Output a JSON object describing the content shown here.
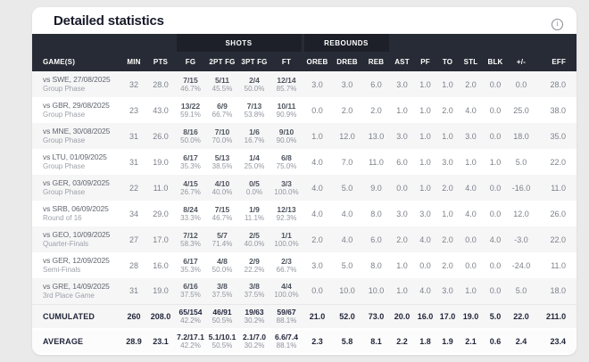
{
  "header": {
    "title": "Detailed statistics",
    "info_glyph": "i"
  },
  "colors": {
    "page_bg": "#eaeaea",
    "card_bg": "#ffffff",
    "title_color": "#171b2a",
    "header_bg": "#272b35",
    "group_bg": "#1d2029",
    "stripe": "#f6f6f7",
    "num_color": "#7b8089",
    "summary_color": "#22263a"
  },
  "table": {
    "group_headers": [
      {
        "label": "",
        "span": 3
      },
      {
        "label": "SHOTS",
        "span": 4
      },
      {
        "label": "REBOUNDS",
        "span": 3
      },
      {
        "label": "",
        "span": 7
      }
    ],
    "columns": [
      "GAME(S)",
      "MIN",
      "PTS",
      "FG",
      "2PT FG",
      "3PT FG",
      "FT",
      "OREB",
      "DREB",
      "REB",
      "AST",
      "PF",
      "TO",
      "STL",
      "BLK",
      "+/-",
      "EFF"
    ],
    "rows": [
      {
        "game": "vs SWE, 27/08/2025",
        "phase": "Group Phase",
        "min": "32",
        "pts": "28.0",
        "fg": "7/15",
        "fg_pct": "46.7%",
        "fg2": "5/11",
        "fg2_pct": "45.5%",
        "fg3": "2/4",
        "fg3_pct": "50.0%",
        "ft": "12/14",
        "ft_pct": "85.7%",
        "oreb": "3.0",
        "dreb": "3.0",
        "reb": "6.0",
        "ast": "3.0",
        "pf": "1.0",
        "to": "1.0",
        "stl": "2.0",
        "blk": "0.0",
        "plus_minus": "0.0",
        "eff": "28.0"
      },
      {
        "game": "vs GBR, 29/08/2025",
        "phase": "Group Phase",
        "min": "23",
        "pts": "43.0",
        "fg": "13/22",
        "fg_pct": "59.1%",
        "fg2": "6/9",
        "fg2_pct": "66.7%",
        "fg3": "7/13",
        "fg3_pct": "53.8%",
        "ft": "10/11",
        "ft_pct": "90.9%",
        "oreb": "0.0",
        "dreb": "2.0",
        "reb": "2.0",
        "ast": "1.0",
        "pf": "1.0",
        "to": "2.0",
        "stl": "4.0",
        "blk": "0.0",
        "plus_minus": "25.0",
        "eff": "38.0"
      },
      {
        "game": "vs MNE, 30/08/2025",
        "phase": "Group Phase",
        "min": "31",
        "pts": "26.0",
        "fg": "8/16",
        "fg_pct": "50.0%",
        "fg2": "7/10",
        "fg2_pct": "70.0%",
        "fg3": "1/6",
        "fg3_pct": "16.7%",
        "ft": "9/10",
        "ft_pct": "90.0%",
        "oreb": "1.0",
        "dreb": "12.0",
        "reb": "13.0",
        "ast": "3.0",
        "pf": "1.0",
        "to": "1.0",
        "stl": "3.0",
        "blk": "0.0",
        "plus_minus": "18.0",
        "eff": "35.0"
      },
      {
        "game": "vs LTU, 01/09/2025",
        "phase": "Group Phase",
        "min": "31",
        "pts": "19.0",
        "fg": "6/17",
        "fg_pct": "35.3%",
        "fg2": "5/13",
        "fg2_pct": "38.5%",
        "fg3": "1/4",
        "fg3_pct": "25.0%",
        "ft": "6/8",
        "ft_pct": "75.0%",
        "oreb": "4.0",
        "dreb": "7.0",
        "reb": "11.0",
        "ast": "6.0",
        "pf": "1.0",
        "to": "3.0",
        "stl": "1.0",
        "blk": "1.0",
        "plus_minus": "5.0",
        "eff": "22.0"
      },
      {
        "game": "vs GER, 03/09/2025",
        "phase": "Group Phase",
        "min": "22",
        "pts": "11.0",
        "fg": "4/15",
        "fg_pct": "26.7%",
        "fg2": "4/10",
        "fg2_pct": "40.0%",
        "fg3": "0/5",
        "fg3_pct": "0.0%",
        "ft": "3/3",
        "ft_pct": "100.0%",
        "oreb": "4.0",
        "dreb": "5.0",
        "reb": "9.0",
        "ast": "0.0",
        "pf": "1.0",
        "to": "2.0",
        "stl": "4.0",
        "blk": "0.0",
        "plus_minus": "-16.0",
        "eff": "11.0"
      },
      {
        "game": "vs SRB, 06/09/2025",
        "phase": "Round of 16",
        "min": "34",
        "pts": "29.0",
        "fg": "8/24",
        "fg_pct": "33.3%",
        "fg2": "7/15",
        "fg2_pct": "46.7%",
        "fg3": "1/9",
        "fg3_pct": "11.1%",
        "ft": "12/13",
        "ft_pct": "92.3%",
        "oreb": "4.0",
        "dreb": "4.0",
        "reb": "8.0",
        "ast": "3.0",
        "pf": "3.0",
        "to": "1.0",
        "stl": "4.0",
        "blk": "0.0",
        "plus_minus": "12.0",
        "eff": "26.0"
      },
      {
        "game": "vs GEO, 10/09/2025",
        "phase": "Quarter-Finals",
        "min": "27",
        "pts": "17.0",
        "fg": "7/12",
        "fg_pct": "58.3%",
        "fg2": "5/7",
        "fg2_pct": "71.4%",
        "fg3": "2/5",
        "fg3_pct": "40.0%",
        "ft": "1/1",
        "ft_pct": "100.0%",
        "oreb": "2.0",
        "dreb": "4.0",
        "reb": "6.0",
        "ast": "2.0",
        "pf": "4.0",
        "to": "2.0",
        "stl": "0.0",
        "blk": "4.0",
        "plus_minus": "-3.0",
        "eff": "22.0"
      },
      {
        "game": "vs GER, 12/09/2025",
        "phase": "Semi-Finals",
        "min": "28",
        "pts": "16.0",
        "fg": "6/17",
        "fg_pct": "35.3%",
        "fg2": "4/8",
        "fg2_pct": "50.0%",
        "fg3": "2/9",
        "fg3_pct": "22.2%",
        "ft": "2/3",
        "ft_pct": "66.7%",
        "oreb": "3.0",
        "dreb": "5.0",
        "reb": "8.0",
        "ast": "1.0",
        "pf": "0.0",
        "to": "2.0",
        "stl": "0.0",
        "blk": "0.0",
        "plus_minus": "-24.0",
        "eff": "11.0"
      },
      {
        "game": "vs GRE, 14/09/2025",
        "phase": "3rd Place Game",
        "min": "31",
        "pts": "19.0",
        "fg": "6/16",
        "fg_pct": "37.5%",
        "fg2": "3/8",
        "fg2_pct": "37.5%",
        "fg3": "3/8",
        "fg3_pct": "37.5%",
        "ft": "4/4",
        "ft_pct": "100.0%",
        "oreb": "0.0",
        "dreb": "10.0",
        "reb": "10.0",
        "ast": "1.0",
        "pf": "4.0",
        "to": "3.0",
        "stl": "1.0",
        "blk": "0.0",
        "plus_minus": "5.0",
        "eff": "18.0"
      }
    ],
    "cumulated": {
      "label": "CUMULATED",
      "min": "260",
      "pts": "208.0",
      "fg": "65/154",
      "fg_pct": "42.2%",
      "fg2": "46/91",
      "fg2_pct": "50.5%",
      "fg3": "19/63",
      "fg3_pct": "30.2%",
      "ft": "59/67",
      "ft_pct": "88.1%",
      "oreb": "21.0",
      "dreb": "52.0",
      "reb": "73.0",
      "ast": "20.0",
      "pf": "16.0",
      "to": "17.0",
      "stl": "19.0",
      "blk": "5.0",
      "plus_minus": "22.0",
      "eff": "211.0"
    },
    "average": {
      "label": "AVERAGE",
      "min": "28.9",
      "pts": "23.1",
      "fg": "7.2/17.1",
      "fg_pct": "42.2%",
      "fg2": "5.1/10.1",
      "fg2_pct": "50.5%",
      "fg3": "2.1/7.0",
      "fg3_pct": "30.2%",
      "ft": "6.6/7.4",
      "ft_pct": "88.1%",
      "oreb": "2.3",
      "dreb": "5.8",
      "reb": "8.1",
      "ast": "2.2",
      "pf": "1.8",
      "to": "1.9",
      "stl": "2.1",
      "blk": "0.6",
      "plus_minus": "2.4",
      "eff": "23.4"
    }
  }
}
